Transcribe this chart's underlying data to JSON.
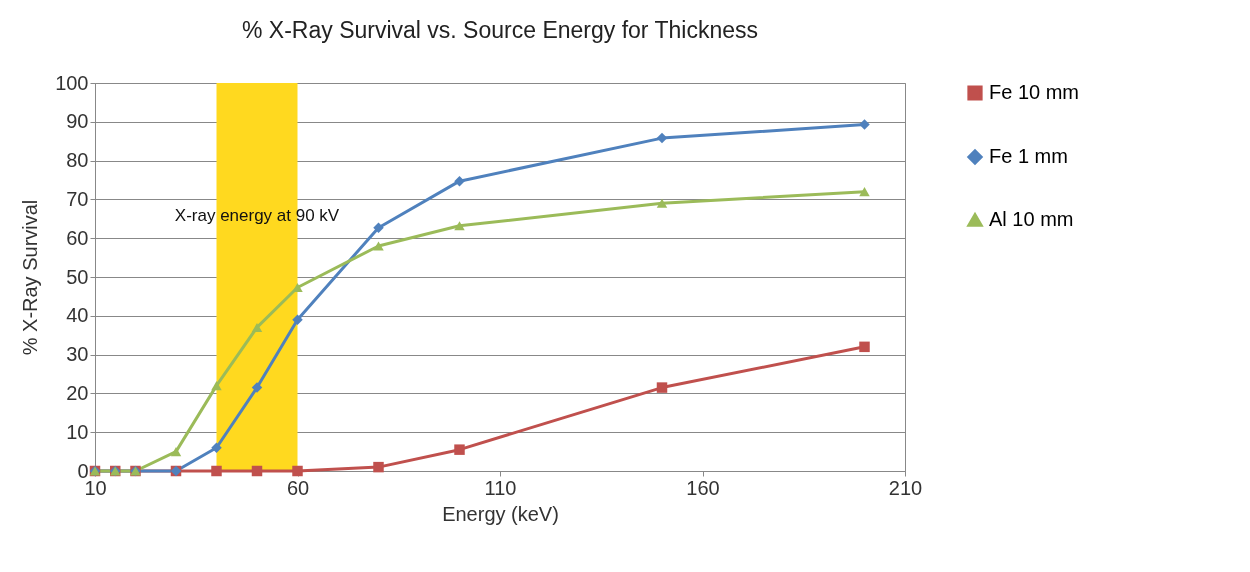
{
  "chart_data": {
    "type": "line",
    "title": "% X-Ray Survival vs. Source Energy for Thickness",
    "xlabel": "Energy (keV)",
    "ylabel": "% X-Ray Survival",
    "x": [
      10,
      15,
      20,
      30,
      40,
      50,
      60,
      80,
      100,
      150,
      200
    ],
    "series": [
      {
        "name": "Fe 10 mm",
        "color": "#c0504d",
        "marker": "square",
        "values": [
          0,
          0,
          0,
          0,
          0,
          0,
          0,
          1,
          5.5,
          21.5,
          32
        ]
      },
      {
        "name": "Fe 1 mm",
        "color": "#4f81bd",
        "marker": "diamond",
        "values": [
          0,
          0,
          0,
          0,
          6,
          21.5,
          39,
          62.7,
          74.7,
          85.8,
          89.3
        ]
      },
      {
        "name": "Al 10 mm",
        "color": "#9bbb59",
        "marker": "triangle",
        "values": [
          0,
          0,
          0,
          5,
          22,
          37,
          47.3,
          58,
          63.2,
          69,
          72
        ]
      }
    ],
    "bands": [
      {
        "axis": "x",
        "from": 40,
        "to": 60,
        "label": "X-ray energy at 90 kV",
        "color": "#ffd91f"
      }
    ],
    "xlim": [
      10,
      210
    ],
    "xticks": [
      10,
      60,
      110,
      160,
      210
    ],
    "ylim": [
      0,
      100
    ],
    "yticks": [
      0,
      10,
      20,
      30,
      40,
      50,
      60,
      70,
      80,
      90,
      100
    ],
    "grid": "y",
    "legend": "right"
  }
}
